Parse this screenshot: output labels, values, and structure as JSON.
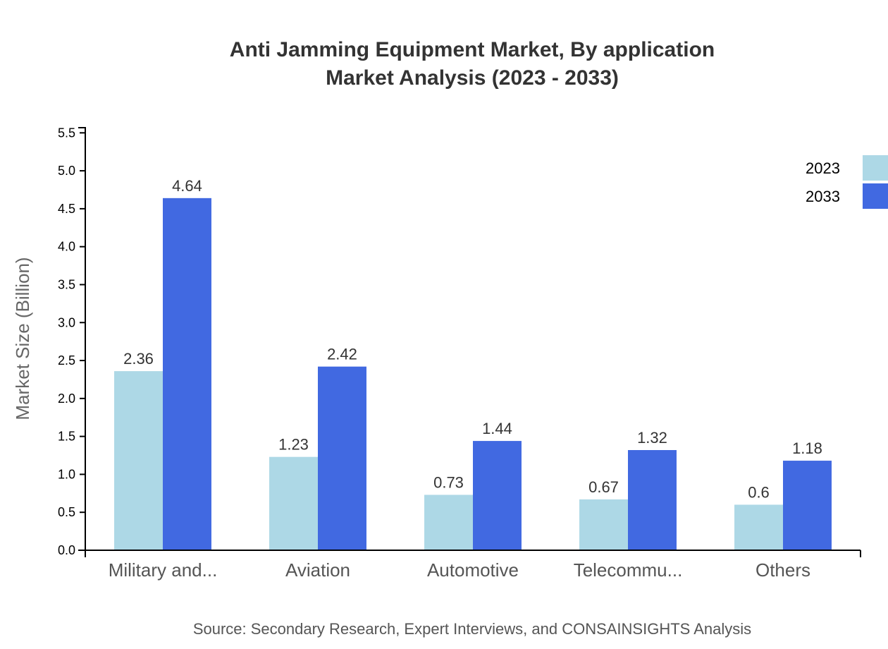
{
  "chart_data": {
    "type": "bar",
    "title": [
      "Anti Jamming Equipment Market, By application",
      "Market Analysis (2023 - 2033)"
    ],
    "ylabel": "Market Size (Billion)",
    "xlabel": "",
    "categories": [
      "Military and...",
      "Aviation",
      "Automotive",
      "Telecommu...",
      "Others"
    ],
    "series": [
      {
        "name": "2023",
        "color": "#add8e6",
        "values": [
          2.36,
          1.23,
          0.73,
          0.67,
          0.6
        ]
      },
      {
        "name": "2033",
        "color": "#4169e1",
        "values": [
          4.64,
          2.42,
          1.44,
          1.32,
          1.18
        ]
      }
    ],
    "ylim": [
      0,
      5.568
    ],
    "yticks": [
      "0.0",
      "0.5",
      "1.0",
      "1.5",
      "2.0",
      "2.5",
      "3.0",
      "3.5",
      "4.0",
      "4.5",
      "5.0",
      "5.5"
    ],
    "grid": false,
    "legend": "top-right",
    "source": "Source: Secondary Research, Expert Interviews, and CONSAINSIGHTS Analysis"
  }
}
